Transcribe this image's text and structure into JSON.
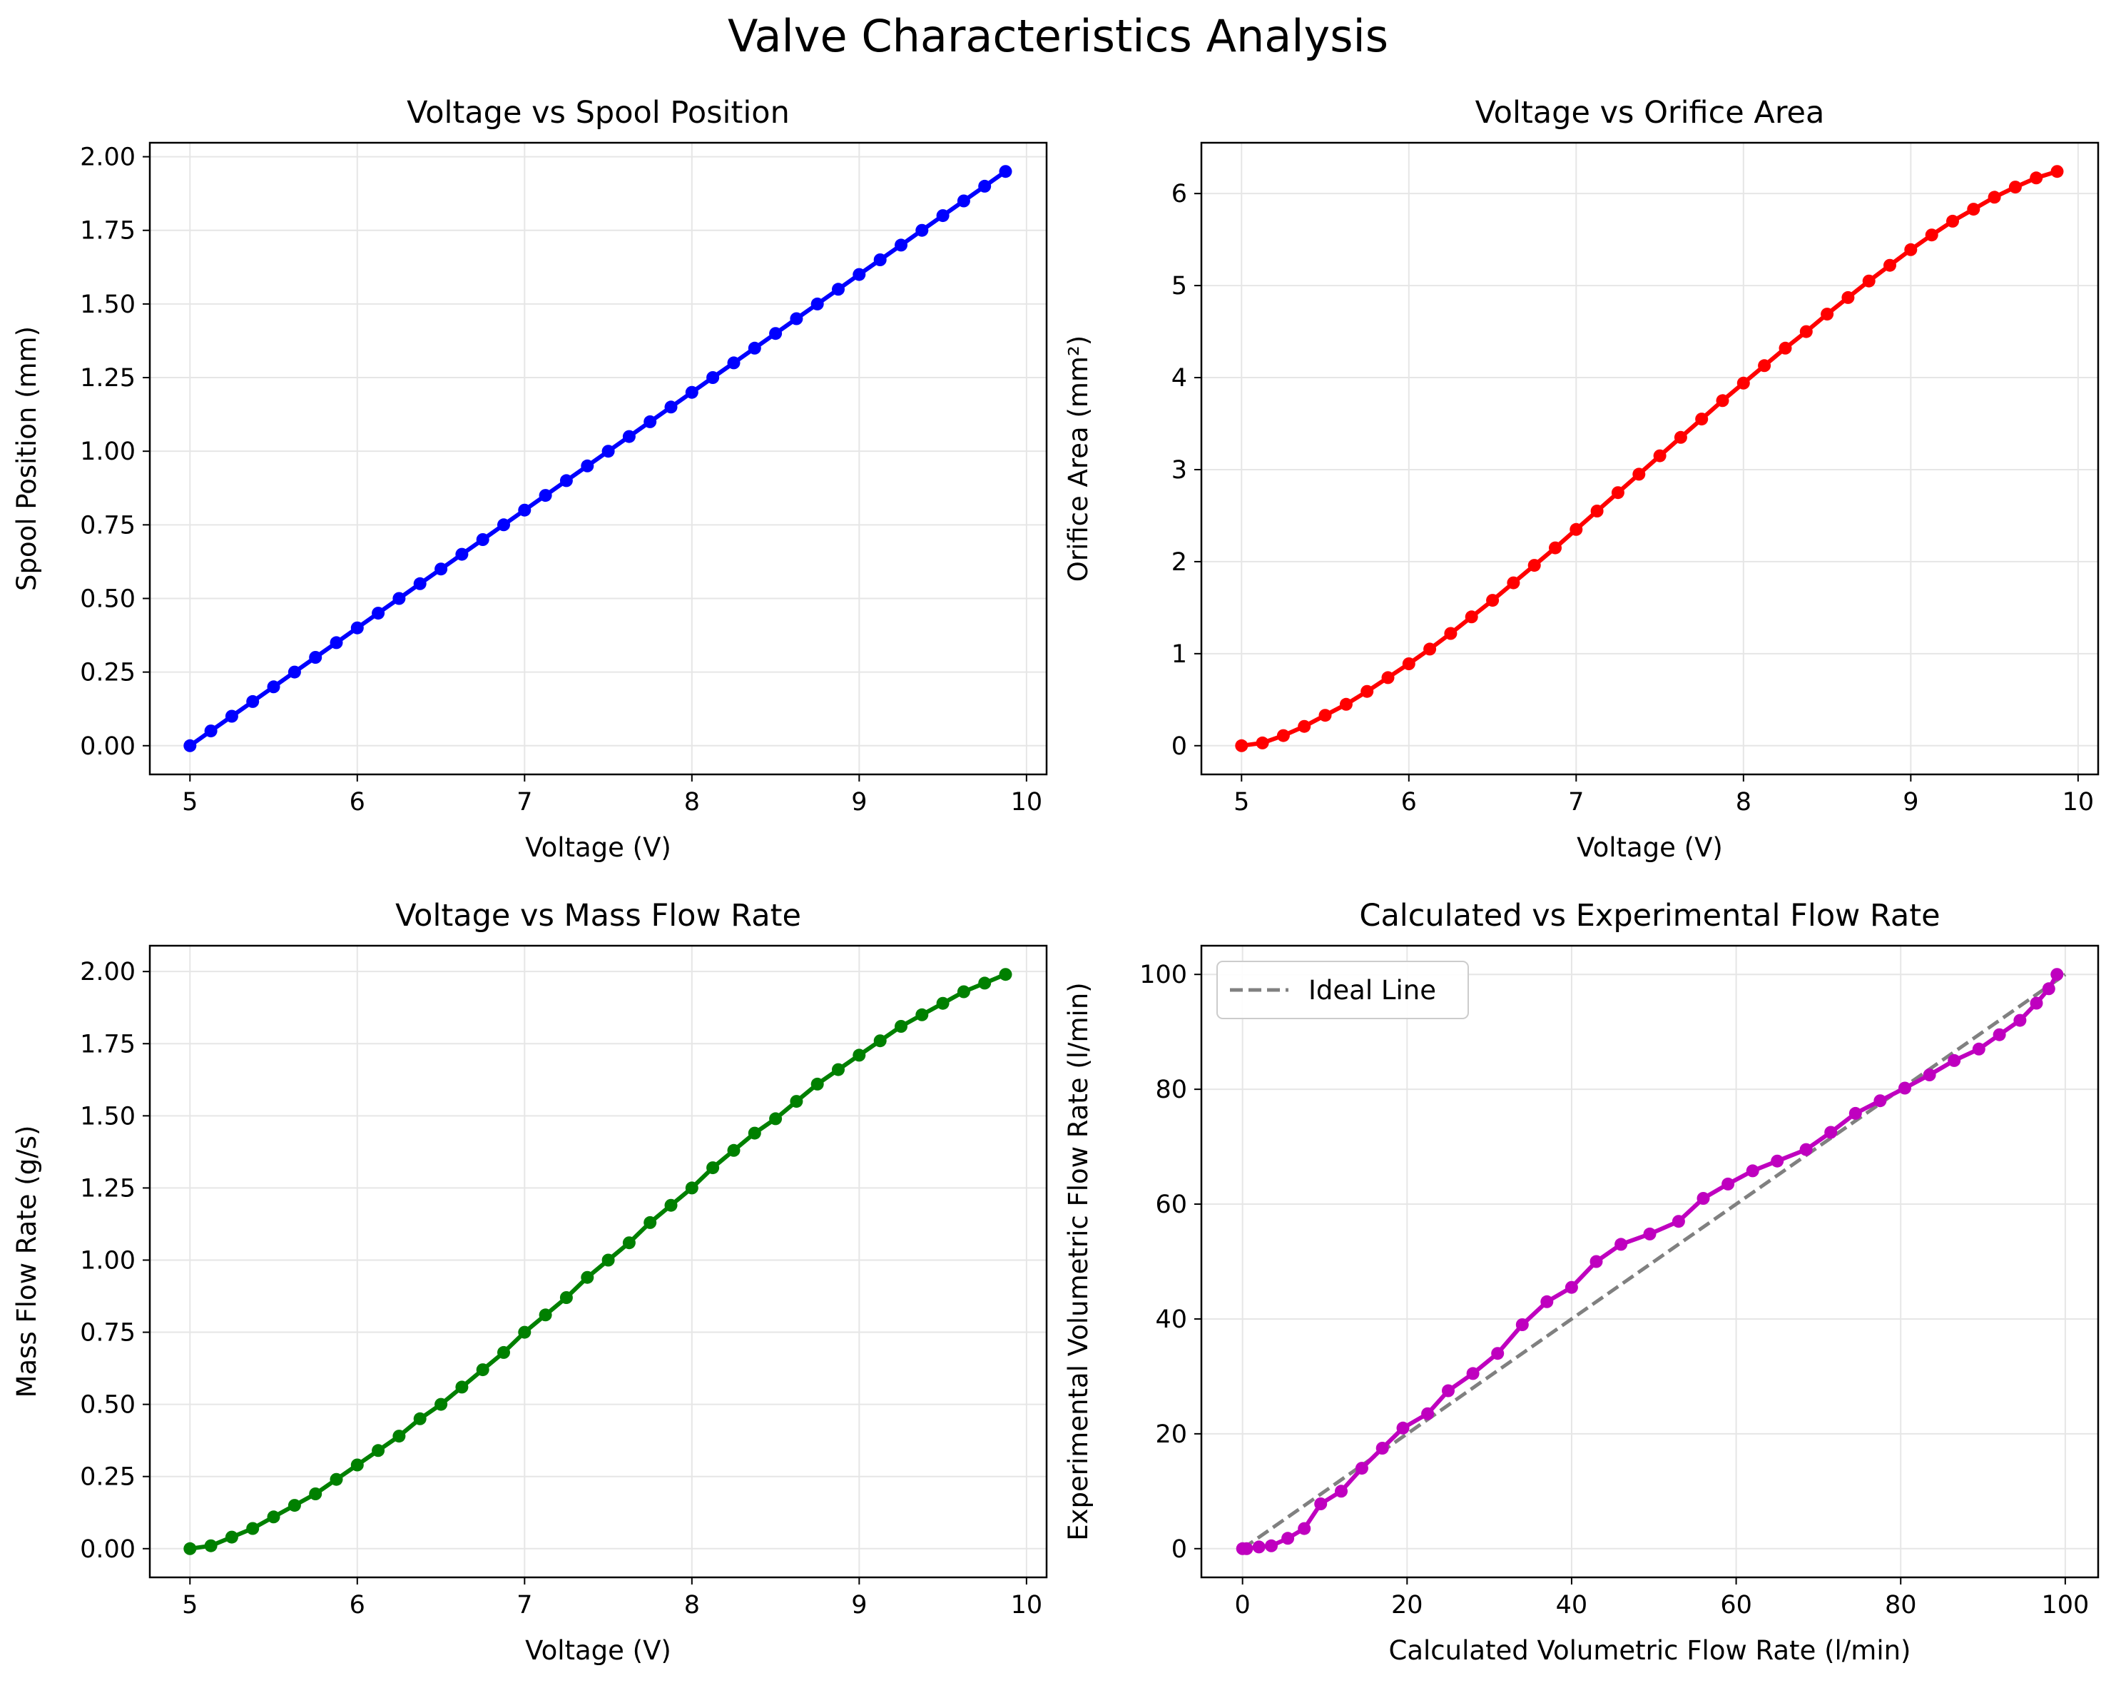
{
  "figure": {
    "suptitle": "Valve Characteristics Analysis"
  },
  "chart_data": [
    {
      "type": "line",
      "title": "Voltage vs Spool Position",
      "xlabel": "Voltage (V)",
      "ylabel": "Spool Position (mm)",
      "xlim": [
        4.76,
        10.12
      ],
      "ylim": [
        -0.0975,
        2.0475
      ],
      "xticks": [
        5,
        6,
        7,
        8,
        9,
        10
      ],
      "xtick_labels": [
        "5",
        "6",
        "7",
        "8",
        "9",
        "10"
      ],
      "yticks": [
        0,
        0.25,
        0.5,
        0.75,
        1.0,
        1.25,
        1.5,
        1.75,
        2.0
      ],
      "ytick_labels": [
        "0.00",
        "0.25",
        "0.50",
        "0.75",
        "1.00",
        "1.25",
        "1.50",
        "1.75",
        "2.00"
      ],
      "grid": true,
      "color": "#0000ff",
      "series": [
        {
          "x": [
            5.0,
            5.125,
            5.25,
            5.375,
            5.5,
            5.625,
            5.75,
            5.875,
            6.0,
            6.125,
            6.25,
            6.375,
            6.5,
            6.625,
            6.75,
            6.875,
            7.0,
            7.125,
            7.25,
            7.375,
            7.5,
            7.625,
            7.75,
            7.875,
            8.0,
            8.125,
            8.25,
            8.375,
            8.5,
            8.625,
            8.75,
            8.875,
            9.0,
            9.125,
            9.25,
            9.375,
            9.5,
            9.625,
            9.75,
            9.875
          ],
          "y": [
            0.0,
            0.05,
            0.1,
            0.15,
            0.2,
            0.25,
            0.3,
            0.35,
            0.4,
            0.45,
            0.5,
            0.55,
            0.6,
            0.65,
            0.7,
            0.75,
            0.8,
            0.85,
            0.9,
            0.95,
            1.0,
            1.05,
            1.1,
            1.15,
            1.2,
            1.25,
            1.3,
            1.35,
            1.4,
            1.45,
            1.5,
            1.55,
            1.6,
            1.65,
            1.7,
            1.75,
            1.8,
            1.85,
            1.9,
            1.95
          ]
        }
      ]
    },
    {
      "type": "line",
      "title": "Voltage vs Orifice Area",
      "xlabel": "Voltage (V)",
      "ylabel": "Orifice Area (mm²)",
      "xlim": [
        4.76,
        10.12
      ],
      "ylim": [
        -0.312,
        6.552
      ],
      "xticks": [
        5,
        6,
        7,
        8,
        9,
        10
      ],
      "xtick_labels": [
        "5",
        "6",
        "7",
        "8",
        "9",
        "10"
      ],
      "yticks": [
        0,
        1,
        2,
        3,
        4,
        5,
        6
      ],
      "ytick_labels": [
        "0",
        "1",
        "2",
        "3",
        "4",
        "5",
        "6"
      ],
      "grid": true,
      "color": "#ff0000",
      "series": [
        {
          "x": [
            5.0,
            5.125,
            5.25,
            5.375,
            5.5,
            5.625,
            5.75,
            5.875,
            6.0,
            6.125,
            6.25,
            6.375,
            6.5,
            6.625,
            6.75,
            6.875,
            7.0,
            7.125,
            7.25,
            7.375,
            7.5,
            7.625,
            7.75,
            7.875,
            8.0,
            8.125,
            8.25,
            8.375,
            8.5,
            8.625,
            8.75,
            8.875,
            9.0,
            9.125,
            9.25,
            9.375,
            9.5,
            9.625,
            9.75,
            9.875
          ],
          "y": [
            0.0,
            0.03,
            0.11,
            0.21,
            0.33,
            0.45,
            0.59,
            0.74,
            0.89,
            1.05,
            1.22,
            1.4,
            1.58,
            1.77,
            1.96,
            2.15,
            2.35,
            2.55,
            2.75,
            2.95,
            3.15,
            3.35,
            3.55,
            3.75,
            3.94,
            4.13,
            4.32,
            4.5,
            4.69,
            4.87,
            5.05,
            5.22,
            5.39,
            5.55,
            5.7,
            5.83,
            5.96,
            6.07,
            6.17,
            6.24
          ]
        }
      ]
    },
    {
      "type": "line",
      "title": "Voltage vs Mass Flow Rate",
      "xlabel": "Voltage (V)",
      "ylabel": "Mass Flow Rate (g/s)",
      "xlim": [
        4.76,
        10.12
      ],
      "ylim": [
        -0.0995,
        2.0895
      ],
      "xticks": [
        5,
        6,
        7,
        8,
        9,
        10
      ],
      "xtick_labels": [
        "5",
        "6",
        "7",
        "8",
        "9",
        "10"
      ],
      "yticks": [
        0,
        0.25,
        0.5,
        0.75,
        1.0,
        1.25,
        1.5,
        1.75,
        2.0
      ],
      "ytick_labels": [
        "0.00",
        "0.25",
        "0.50",
        "0.75",
        "1.00",
        "1.25",
        "1.50",
        "1.75",
        "2.00"
      ],
      "grid": true,
      "color": "#008000",
      "series": [
        {
          "x": [
            5.0,
            5.125,
            5.25,
            5.375,
            5.5,
            5.625,
            5.75,
            5.875,
            6.0,
            6.125,
            6.25,
            6.375,
            6.5,
            6.625,
            6.75,
            6.875,
            7.0,
            7.125,
            7.25,
            7.375,
            7.5,
            7.625,
            7.75,
            7.875,
            8.0,
            8.125,
            8.25,
            8.375,
            8.5,
            8.625,
            8.75,
            8.875,
            9.0,
            9.125,
            9.25,
            9.375,
            9.5,
            9.625,
            9.75,
            9.875
          ],
          "y": [
            0.0,
            0.01,
            0.04,
            0.07,
            0.11,
            0.15,
            0.19,
            0.24,
            0.29,
            0.34,
            0.39,
            0.45,
            0.5,
            0.56,
            0.62,
            0.68,
            0.75,
            0.81,
            0.87,
            0.94,
            1.0,
            1.06,
            1.13,
            1.19,
            1.25,
            1.32,
            1.38,
            1.44,
            1.49,
            1.55,
            1.61,
            1.66,
            1.71,
            1.76,
            1.81,
            1.85,
            1.89,
            1.93,
            1.96,
            1.99
          ]
        }
      ]
    },
    {
      "type": "line",
      "title": "Calculated vs Experimental Flow Rate",
      "xlabel": "Calculated Volumetric Flow Rate (l/min)",
      "ylabel": "Experimental Volumetric Flow Rate (l/min)",
      "xlim": [
        -5,
        104
      ],
      "ylim": [
        -5,
        105
      ],
      "xticks": [
        0,
        20,
        40,
        60,
        80,
        100
      ],
      "xtick_labels": [
        "0",
        "20",
        "40",
        "60",
        "80",
        "100"
      ],
      "yticks": [
        0,
        20,
        40,
        60,
        80,
        100
      ],
      "ytick_labels": [
        "0",
        "20",
        "40",
        "60",
        "80",
        "100"
      ],
      "grid": true,
      "legend": {
        "position": "top-left",
        "entries": [
          "Ideal Line"
        ]
      },
      "series": [
        {
          "name": "Ideal Line",
          "style": "dashed",
          "color": "#808080",
          "x": [
            0,
            100
          ],
          "y": [
            0,
            100
          ]
        },
        {
          "style": "solid-markers",
          "color": "#bf00bf",
          "x": [
            0,
            0.5,
            2,
            3.5,
            5.5,
            7.5,
            9.5,
            12,
            14.5,
            17,
            19.5,
            22.5,
            25,
            28,
            31,
            34,
            37,
            40,
            43,
            46,
            49.5,
            53,
            56,
            59,
            62,
            65,
            68.5,
            71.5,
            74.5,
            77.5,
            80.5,
            83.5,
            86.5,
            89.5,
            92,
            94.5,
            96.5,
            98,
            99
          ],
          "y": [
            0,
            0,
            0.3,
            0.5,
            1.8,
            3.5,
            7.8,
            10,
            14,
            17.5,
            21,
            23.5,
            27.5,
            30.5,
            34,
            39,
            43,
            45.5,
            50,
            53,
            54.8,
            57,
            61,
            63.5,
            65.8,
            67.5,
            69.5,
            72.5,
            75.8,
            78,
            80.2,
            82.5,
            85,
            87,
            89.5,
            92,
            95,
            97.5,
            100
          ]
        }
      ]
    }
  ]
}
